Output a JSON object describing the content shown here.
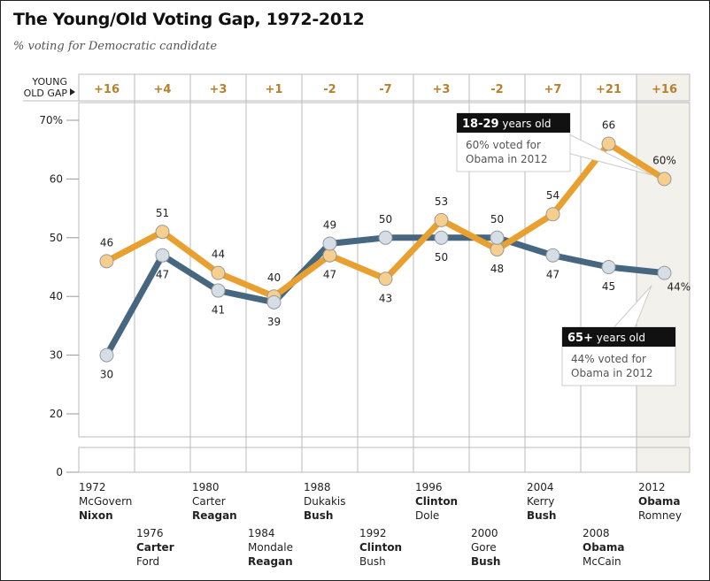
{
  "chart_data": {
    "type": "line",
    "title": "The Young/Old Voting Gap, 1972-2012",
    "subtitle": "% voting for Democratic candidate",
    "gap_label_line1": "YOUNG",
    "gap_label_line2": "OLD GAP",
    "gap": [
      "+16",
      "+4",
      "+3",
      "+1",
      "-2",
      "-7",
      "+3",
      "-2",
      "+7",
      "+21",
      "+16"
    ],
    "x": [
      1972,
      1976,
      1980,
      1984,
      1988,
      1992,
      1996,
      2000,
      2004,
      2008,
      2012
    ],
    "y_ticks": [
      "70%",
      "60",
      "50",
      "40",
      "30",
      "20",
      "0"
    ],
    "ylim": [
      20,
      70
    ],
    "series": [
      {
        "key": "young",
        "values": [
          46,
          51,
          44,
          40,
          47,
          43,
          53,
          48,
          54,
          66,
          60
        ],
        "labels": [
          "46",
          "51",
          "44",
          "40",
          "47",
          "43",
          "53",
          "48",
          "54",
          "66",
          "60%"
        ],
        "color": "#E8A030",
        "fill": "#F6CF8F"
      },
      {
        "key": "old",
        "values": [
          30,
          47,
          41,
          39,
          49,
          50,
          50,
          50,
          47,
          45,
          44
        ],
        "labels": [
          "30",
          "47",
          "41",
          "39",
          "49",
          "50",
          "50",
          "50",
          "47",
          "45",
          "44%"
        ],
        "color": "#46677F",
        "fill": "#D5DEE6"
      }
    ],
    "candidates": [
      {
        "year": "1972",
        "dem": "McGovern",
        "rep": "Nixon",
        "winner": "rep"
      },
      {
        "year": "1976",
        "dem": "Carter",
        "rep": "Ford",
        "winner": "dem"
      },
      {
        "year": "1980",
        "dem": "Carter",
        "rep": "Reagan",
        "winner": "rep"
      },
      {
        "year": "1984",
        "dem": "Mondale",
        "rep": "Reagan",
        "winner": "rep"
      },
      {
        "year": "1988",
        "dem": "Dukakis",
        "rep": "Bush",
        "winner": "rep"
      },
      {
        "year": "1992",
        "dem": "Clinton",
        "rep": "Bush",
        "winner": "dem"
      },
      {
        "year": "1996",
        "dem": "Clinton",
        "rep": "Dole",
        "winner": "dem"
      },
      {
        "year": "2000",
        "dem": "Gore",
        "rep": "Bush",
        "winner": "rep"
      },
      {
        "year": "2004",
        "dem": "Kerry",
        "rep": "Bush",
        "winner": "rep"
      },
      {
        "year": "2008",
        "dem": "Obama",
        "rep": "McCain",
        "winner": "dem"
      },
      {
        "year": "2012",
        "dem": "Obama",
        "rep": "Romney",
        "winner": "dem"
      }
    ],
    "callouts": {
      "young": {
        "head_bold": "18-29",
        "head_rest": " years old",
        "line1": "60% voted for",
        "line2": "Obama in 2012"
      },
      "old": {
        "head_bold": "65+",
        "head_rest": " years old",
        "line1": "44% voted for",
        "line2": "Obama in 2012"
      }
    },
    "gap_color": "#B8802A",
    "highlight_fill": "#F3F1EC"
  }
}
